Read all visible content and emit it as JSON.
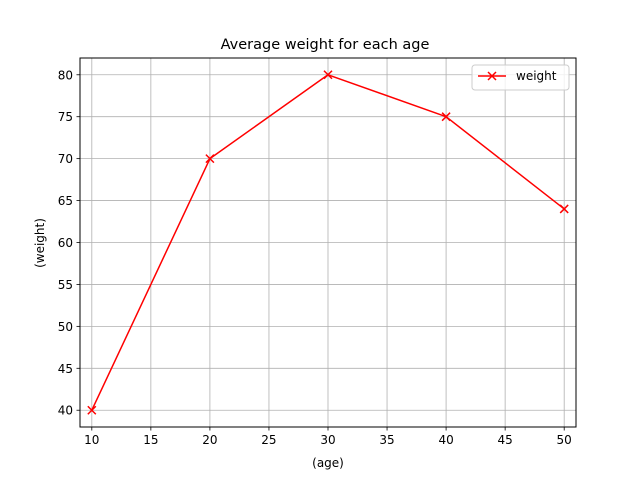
{
  "chart_data": {
    "type": "line",
    "title": "Average weight for each age",
    "xlabel": "(age)",
    "ylabel": "(weight)",
    "xlim": [
      9,
      51
    ],
    "ylim": [
      38,
      82
    ],
    "xticks": [
      10,
      15,
      20,
      25,
      30,
      35,
      40,
      45,
      50
    ],
    "yticks": [
      40,
      45,
      50,
      55,
      60,
      65,
      70,
      75,
      80
    ],
    "grid": true,
    "legend_position": "top-right",
    "series": [
      {
        "name": "weight",
        "color": "#ff0000",
        "marker": "x",
        "x": [
          10,
          20,
          30,
          40,
          50
        ],
        "y": [
          40,
          70,
          80,
          75,
          64
        ]
      }
    ]
  }
}
